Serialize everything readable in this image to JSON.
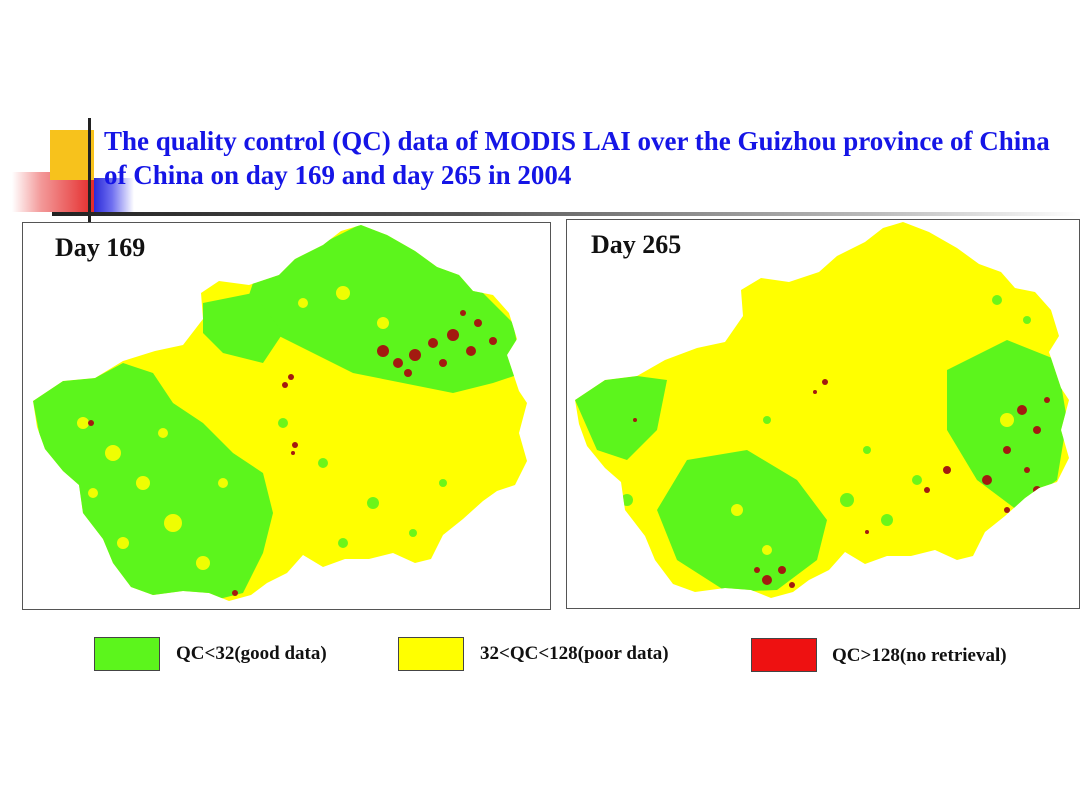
{
  "title": "The quality control (QC) data of MODIS LAI over the Guizhou province of China of China on day 169 and day 265 in 2004",
  "colors": {
    "good": "#5cf51c",
    "poor": "#ffff00",
    "no_retrieval": "#ee1111",
    "dark_red": "#a31a10",
    "title_blue": "#1515e6"
  },
  "maps": [
    {
      "label": "Day 169",
      "region": "Guizhou province"
    },
    {
      "label": "Day 265",
      "region": "Guizhou province"
    }
  ],
  "legend": [
    {
      "label": "QC<32(good data)",
      "color": "#5cf51c"
    },
    {
      "label": "32<QC<128(poor data)",
      "color": "#ffff00"
    },
    {
      "label": "QC>128(no retrieval)",
      "color": "#ee1111"
    }
  ]
}
